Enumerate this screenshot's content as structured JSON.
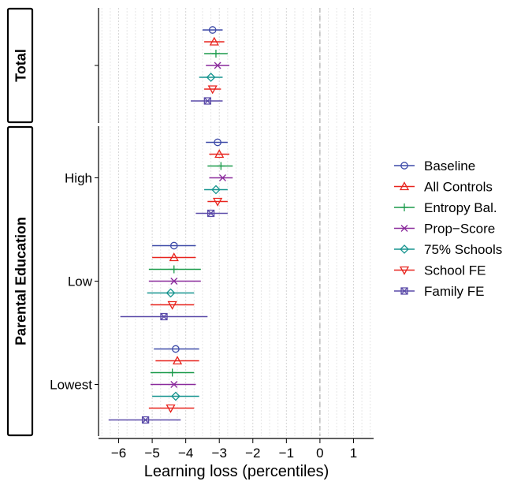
{
  "chart_data": {
    "type": "scatter",
    "subtype": "coefficient plot with confidence intervals",
    "xlabel": "Learning loss (percentiles)",
    "xlim": [
      -6.6,
      1.6
    ],
    "xticks": [
      -6,
      -5,
      -4,
      -3,
      -2,
      -1,
      0,
      1
    ],
    "xtick_labels": [
      "−6",
      "−5",
      "−4",
      "−3",
      "−2",
      "−1",
      "0",
      "1"
    ],
    "reference_line_x": 0,
    "legend_position": "right",
    "grid": "vertical dotted minor gridlines",
    "series": [
      {
        "name": "Baseline",
        "color": "#3d4aa8",
        "marker": "circle"
      },
      {
        "name": "All Controls",
        "color": "#e8251f",
        "marker": "triangle-up"
      },
      {
        "name": "Entropy Bal.",
        "color": "#1a9a4a",
        "marker": "plus"
      },
      {
        "name": "Prop−Score",
        "color": "#8a2a9c",
        "marker": "cross"
      },
      {
        "name": "75% Schools",
        "color": "#16948f",
        "marker": "diamond"
      },
      {
        "name": "School FE",
        "color": "#e8251f",
        "marker": "triangle-down"
      },
      {
        "name": "Family FE",
        "color": "#5a4aa8",
        "marker": "square-cross"
      }
    ],
    "panels": [
      {
        "strip_label": "Total",
        "groups": [
          {
            "label": "",
            "estimates": [
              {
                "series": "Baseline",
                "point": -3.2,
                "low": -3.5,
                "high": -2.9
              },
              {
                "series": "All Controls",
                "point": -3.15,
                "low": -3.45,
                "high": -2.85
              },
              {
                "series": "Entropy Bal.",
                "point": -3.1,
                "low": -3.45,
                "high": -2.75
              },
              {
                "series": "Prop−Score",
                "point": -3.05,
                "low": -3.4,
                "high": -2.7
              },
              {
                "series": "75% Schools",
                "point": -3.25,
                "low": -3.6,
                "high": -2.9
              },
              {
                "series": "School FE",
                "point": -3.2,
                "low": -3.45,
                "high": -2.95
              },
              {
                "series": "Family FE",
                "point": -3.35,
                "low": -3.85,
                "high": -2.9
              }
            ]
          }
        ]
      },
      {
        "strip_label": "Parental Education",
        "groups": [
          {
            "label": "High",
            "estimates": [
              {
                "series": "Baseline",
                "point": -3.05,
                "low": -3.4,
                "high": -2.75
              },
              {
                "series": "All Controls",
                "point": -3.0,
                "low": -3.3,
                "high": -2.7
              },
              {
                "series": "Entropy Bal.",
                "point": -2.95,
                "low": -3.35,
                "high": -2.6
              },
              {
                "series": "Prop−Score",
                "point": -2.9,
                "low": -3.3,
                "high": -2.6
              },
              {
                "series": "75% Schools",
                "point": -3.1,
                "low": -3.45,
                "high": -2.75
              },
              {
                "series": "School FE",
                "point": -3.05,
                "low": -3.35,
                "high": -2.75
              },
              {
                "series": "Family FE",
                "point": -3.25,
                "low": -3.7,
                "high": -2.75
              }
            ]
          },
          {
            "label": "Low",
            "estimates": [
              {
                "series": "Baseline",
                "point": -4.35,
                "low": -5.0,
                "high": -3.7
              },
              {
                "series": "All Controls",
                "point": -4.35,
                "low": -5.0,
                "high": -3.7
              },
              {
                "series": "Entropy Bal.",
                "point": -4.35,
                "low": -5.1,
                "high": -3.55
              },
              {
                "series": "Prop−Score",
                "point": -4.35,
                "low": -5.1,
                "high": -3.55
              },
              {
                "series": "75% Schools",
                "point": -4.45,
                "low": -5.15,
                "high": -3.75
              },
              {
                "series": "School FE",
                "point": -4.4,
                "low": -5.05,
                "high": -3.75
              },
              {
                "series": "Family FE",
                "point": -4.65,
                "low": -5.95,
                "high": -3.35
              }
            ]
          },
          {
            "label": "Lowest",
            "estimates": [
              {
                "series": "Baseline",
                "point": -4.3,
                "low": -4.95,
                "high": -3.6
              },
              {
                "series": "All Controls",
                "point": -4.25,
                "low": -4.9,
                "high": -3.6
              },
              {
                "series": "Entropy Bal.",
                "point": -4.4,
                "low": -5.05,
                "high": -3.75
              },
              {
                "series": "Prop−Score",
                "point": -4.35,
                "low": -5.05,
                "high": -3.7
              },
              {
                "series": "75% Schools",
                "point": -4.3,
                "low": -5.0,
                "high": -3.6
              },
              {
                "series": "School FE",
                "point": -4.45,
                "low": -5.1,
                "high": -3.75
              },
              {
                "series": "Family FE",
                "point": -5.2,
                "low": -6.3,
                "high": -4.15
              }
            ]
          }
        ]
      }
    ]
  }
}
